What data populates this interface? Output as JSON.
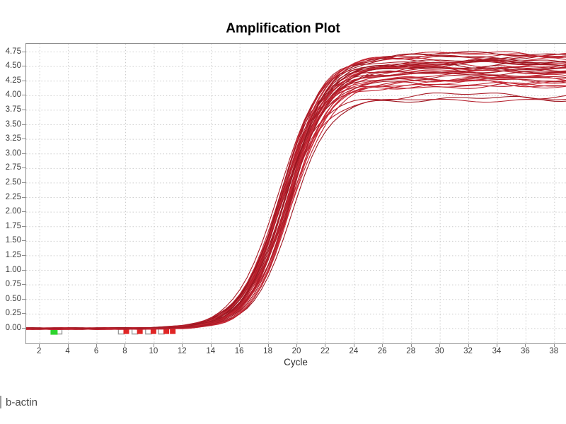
{
  "chart_data": {
    "type": "line",
    "title": "Amplification Plot",
    "xlabel": "Cycle",
    "ylabel": "",
    "series_name": "b-actin",
    "legend_position": "bottom-left",
    "grid": "dotted",
    "x_ticks": [
      2,
      4,
      6,
      8,
      10,
      12,
      14,
      16,
      18,
      20,
      22,
      24,
      26,
      28,
      30,
      32,
      34,
      36,
      38
    ],
    "y_ticks": [
      0,
      0.25,
      0.5,
      0.75,
      1,
      1.25,
      1.5,
      1.75,
      2,
      2.25,
      2.5,
      2.75,
      3,
      3.25,
      3.5,
      3.75,
      4,
      4.25,
      4.5,
      4.75
    ],
    "xlim": [
      1.05,
      38.85
    ],
    "ylim": [
      -0.28,
      4.89
    ],
    "n_curves": 42,
    "plateau_range": [
      3.88,
      4.72
    ],
    "representative_curve": {
      "x": [
        1,
        2,
        3,
        4,
        5,
        6,
        7,
        8,
        9,
        10,
        11,
        12,
        13,
        14,
        15,
        16,
        17,
        18,
        19,
        20,
        21,
        22,
        23,
        24,
        25,
        26,
        27,
        28,
        29,
        30
      ],
      "y": [
        0,
        0,
        0,
        0,
        0,
        0,
        0,
        0,
        0,
        0,
        0,
        0.01,
        0.06,
        0.13,
        0.25,
        0.48,
        0.87,
        1.46,
        2.2,
        2.94,
        3.53,
        3.92,
        4.15,
        4.27,
        4.34,
        4.37,
        4.39,
        4.4,
        4.4,
        4.4
      ]
    },
    "sigmoid_params": {
      "plateau": [
        4.15,
        4.72
      ],
      "plateau_low": [
        3.88,
        4.05
      ],
      "n_low": 3,
      "midpoint": [
        18.7,
        19.65
      ],
      "slope": [
        0.64,
        0.78
      ]
    },
    "markers": [
      {
        "cycle": 3.35,
        "kind": "outline"
      },
      {
        "cycle": 3.0,
        "kind": "green"
      },
      {
        "cycle": 7.7,
        "kind": "outline"
      },
      {
        "cycle": 8.05,
        "kind": "red"
      },
      {
        "cycle": 8.65,
        "kind": "outline"
      },
      {
        "cycle": 9.0,
        "kind": "red"
      },
      {
        "cycle": 9.6,
        "kind": "outline"
      },
      {
        "cycle": 9.95,
        "kind": "red"
      },
      {
        "cycle": 10.5,
        "kind": "outline"
      },
      {
        "cycle": 10.85,
        "kind": "red"
      },
      {
        "cycle": 11.3,
        "kind": "red"
      }
    ],
    "colors": {
      "grid": "#cccccc",
      "axis_border": "#8e8e8e",
      "tick_label": "#3c3c3c",
      "title": "#000000",
      "curve_palette": [
        "#9d1620",
        "#aa1b26",
        "#b51f2c",
        "#c02431",
        "#c92a36"
      ],
      "marker_green": "#2ed32e",
      "marker_red": "#e02525",
      "marker_outline_border": "#9a9a9a",
      "marker_outline_fill": "#ffffff"
    }
  }
}
